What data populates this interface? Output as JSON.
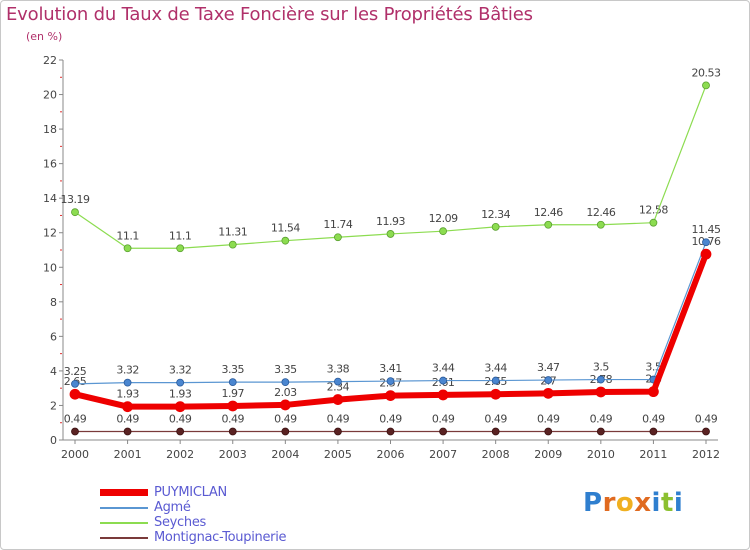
{
  "header": {
    "title": "Evolution du Taux de Taxe Foncière sur les Propriétés Bâties",
    "unit": "(en %)"
  },
  "logo": {
    "text": "Proxiti"
  },
  "chart_data": {
    "type": "line",
    "title": "Evolution du Taux de Taxe Foncière sur les Propriétés Bâties",
    "ylabel": "(en %)",
    "xlabel": "",
    "ylim": [
      0,
      22
    ],
    "yticks": [
      0,
      2,
      4,
      6,
      8,
      10,
      12,
      14,
      16,
      18,
      20,
      22
    ],
    "grid": false,
    "legend": "bottom-left",
    "x": [
      "2000",
      "2001",
      "2002",
      "2003",
      "2004",
      "2005",
      "2006",
      "2007",
      "2008",
      "2009",
      "2010",
      "2011",
      "2012"
    ],
    "series": [
      {
        "name": "PUYMICLAN",
        "color": "#ee0000",
        "values": [
          2.65,
          1.93,
          1.93,
          1.97,
          2.03,
          2.34,
          2.57,
          2.61,
          2.65,
          2.7,
          2.78,
          2.8,
          10.76
        ],
        "labels": [
          "2.65",
          "1.93",
          "1.93",
          "1.97",
          "2.03",
          "2.34",
          "2.57",
          "2.61",
          "2.65",
          "2.7",
          "2.78",
          "2.8",
          "10.76"
        ]
      },
      {
        "name": "Agmé",
        "color": "#5a96d2",
        "values": [
          3.25,
          3.32,
          3.32,
          3.35,
          3.35,
          3.38,
          3.41,
          3.44,
          3.44,
          3.47,
          3.5,
          3.5,
          11.45
        ],
        "labels": [
          "3.25",
          "3.32",
          "3.32",
          "3.35",
          "3.35",
          "3.38",
          "3.41",
          "3.44",
          "3.44",
          "3.47",
          "3.5",
          "3.5",
          "11.45"
        ]
      },
      {
        "name": "Seyches",
        "color": "#8cdc50",
        "values": [
          13.19,
          11.1,
          11.1,
          11.31,
          11.54,
          11.74,
          11.93,
          12.09,
          12.34,
          12.46,
          12.46,
          12.58,
          20.53
        ],
        "labels": [
          "13.19",
          "11.1",
          "11.1",
          "11.31",
          "11.54",
          "11.74",
          "11.93",
          "12.09",
          "12.34",
          "12.46",
          "12.46",
          "12.58",
          "20.53"
        ]
      },
      {
        "name": "Montignac-Toupinerie",
        "color": "#7a3a3a",
        "values": [
          0.49,
          0.49,
          0.49,
          0.49,
          0.49,
          0.49,
          0.49,
          0.49,
          0.49,
          0.49,
          0.49,
          0.49,
          0.49
        ],
        "labels": [
          "0.49",
          "0.49",
          "0.49",
          "0.49",
          "0.49",
          "0.49",
          "0.49",
          "0.49",
          "0.49",
          "0.49",
          "0.49",
          "0.49",
          "0.49"
        ]
      }
    ]
  }
}
